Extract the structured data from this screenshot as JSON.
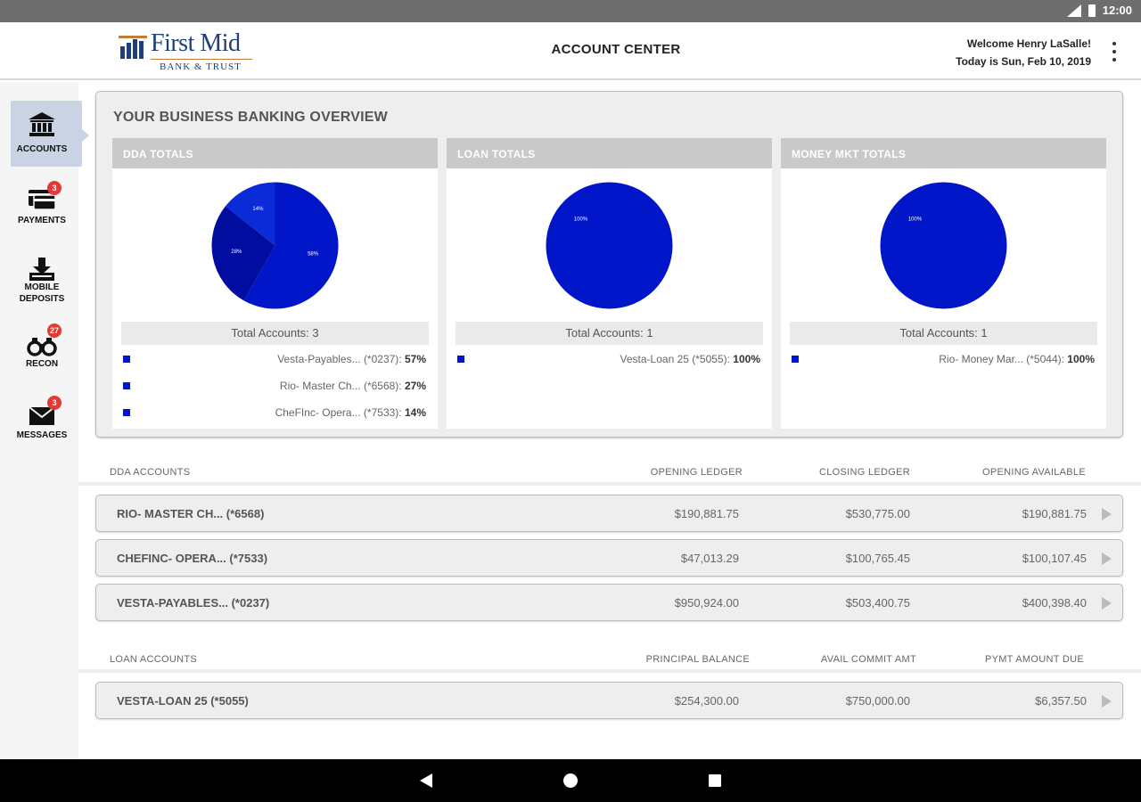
{
  "status_bar": {
    "time": "12:00"
  },
  "header": {
    "logo_name": "First Mid",
    "logo_sub": "BANK & TRUST",
    "title": "ACCOUNT CENTER",
    "welcome": "Welcome Henry LaSalle!",
    "date": "Today is Sun, Feb 10, 2019"
  },
  "sidebar": {
    "items": [
      {
        "label": "ACCOUNTS",
        "icon": "bank-icon"
      },
      {
        "label": "PAYMENTS",
        "icon": "payment-card-icon",
        "badge": "3"
      },
      {
        "label": "MOBILE DEPOSITS",
        "icon": "download-icon"
      },
      {
        "label": "RECON",
        "icon": "binoculars-icon",
        "badge": "27"
      },
      {
        "label": "MESSAGES",
        "icon": "envelope-icon",
        "badge": "3"
      }
    ]
  },
  "overview": {
    "title": "YOUR BUSINESS BANKING OVERVIEW",
    "cards": [
      {
        "title": "DDA TOTALS",
        "total": "Total Accounts: 3",
        "legend": [
          {
            "label": "Vesta-Payables... (*0237): ",
            "pct": "57%"
          },
          {
            "label": "Rio- Master Ch... (*6568): ",
            "pct": "27%"
          },
          {
            "label": "CheFInc- Opera... (*7533): ",
            "pct": "14%"
          }
        ]
      },
      {
        "title": "LOAN TOTALS",
        "total": "Total Accounts: 1",
        "legend": [
          {
            "label": "Vesta-Loan 25 (*5055): ",
            "pct": "100%"
          }
        ]
      },
      {
        "title": "MONEY MKT TOTALS",
        "total": "Total Accounts: 1",
        "legend": [
          {
            "label": "Rio- Money Mar... (*5044): ",
            "pct": "100%"
          }
        ]
      }
    ]
  },
  "dda": {
    "headers": [
      "DDA ACCOUNTS",
      "OPENING LEDGER",
      "CLOSING LEDGER",
      "OPENING AVAILABLE"
    ],
    "rows": [
      [
        "RIO- MASTER CH... (*6568)",
        "$190,881.75",
        "$530,775.00",
        "$190,881.75"
      ],
      [
        "CHEFINC- OPERA... (*7533)",
        "$47,013.29",
        "$100,765.45",
        "$100,107.45"
      ],
      [
        "VESTA-PAYABLES... (*0237)",
        "$950,924.00",
        "$503,400.75",
        "$400,398.40"
      ]
    ]
  },
  "loan": {
    "headers": [
      "LOAN ACCOUNTS",
      "PRINCIPAL BALANCE",
      "AVAIL COMMIT AMT",
      "PYMT AMOUNT DUE"
    ],
    "rows": [
      [
        "VESTA-LOAN 25 (*5055)",
        "$254,300.00",
        "$750,000.00",
        "$6,357.50"
      ]
    ]
  },
  "chart_data": [
    {
      "type": "pie",
      "title": "DDA TOTALS",
      "categories": [
        "Vesta-Payables... (*0237)",
        "Rio- Master Ch... (*6568)",
        "CheFInc- Opera... (*7533)"
      ],
      "values": [
        57,
        27,
        14
      ],
      "colors": [
        "#0016c8",
        "#000d9e",
        "#0a2bd6"
      ]
    },
    {
      "type": "pie",
      "title": "LOAN TOTALS",
      "categories": [
        "Vesta-Loan 25 (*5055)"
      ],
      "values": [
        100
      ],
      "colors": [
        "#0016c8"
      ]
    },
    {
      "type": "pie",
      "title": "MONEY MKT TOTALS",
      "categories": [
        "Rio- Money Mar... (*5044)"
      ],
      "values": [
        100
      ],
      "colors": [
        "#0016c8"
      ]
    }
  ]
}
